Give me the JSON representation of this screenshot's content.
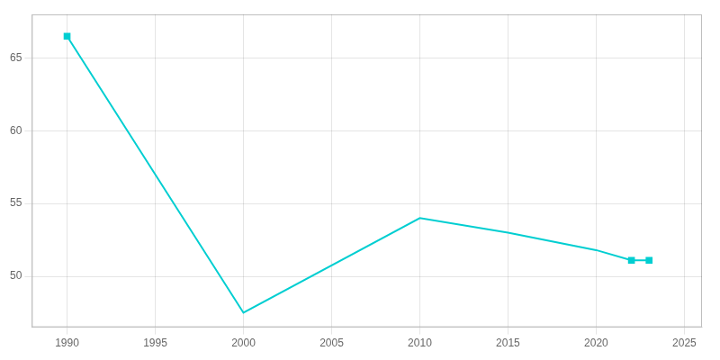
{
  "chart_data": {
    "type": "line",
    "x": [
      1990,
      2000,
      2010,
      2015,
      2020,
      2022,
      2023
    ],
    "values": [
      66.5,
      47.5,
      54.0,
      53.0,
      51.8,
      51.1,
      51.1
    ],
    "color": "#00CED1",
    "marker": "square",
    "marker_x": [
      1990,
      2022,
      2023
    ],
    "xlim": [
      1988,
      2026
    ],
    "xticks": [
      1990,
      1995,
      2000,
      2005,
      2010,
      2015,
      2020,
      2025
    ],
    "ylim": [
      46.5,
      68.0
    ],
    "yticks": [
      50,
      55,
      60,
      65
    ],
    "grid": true
  }
}
